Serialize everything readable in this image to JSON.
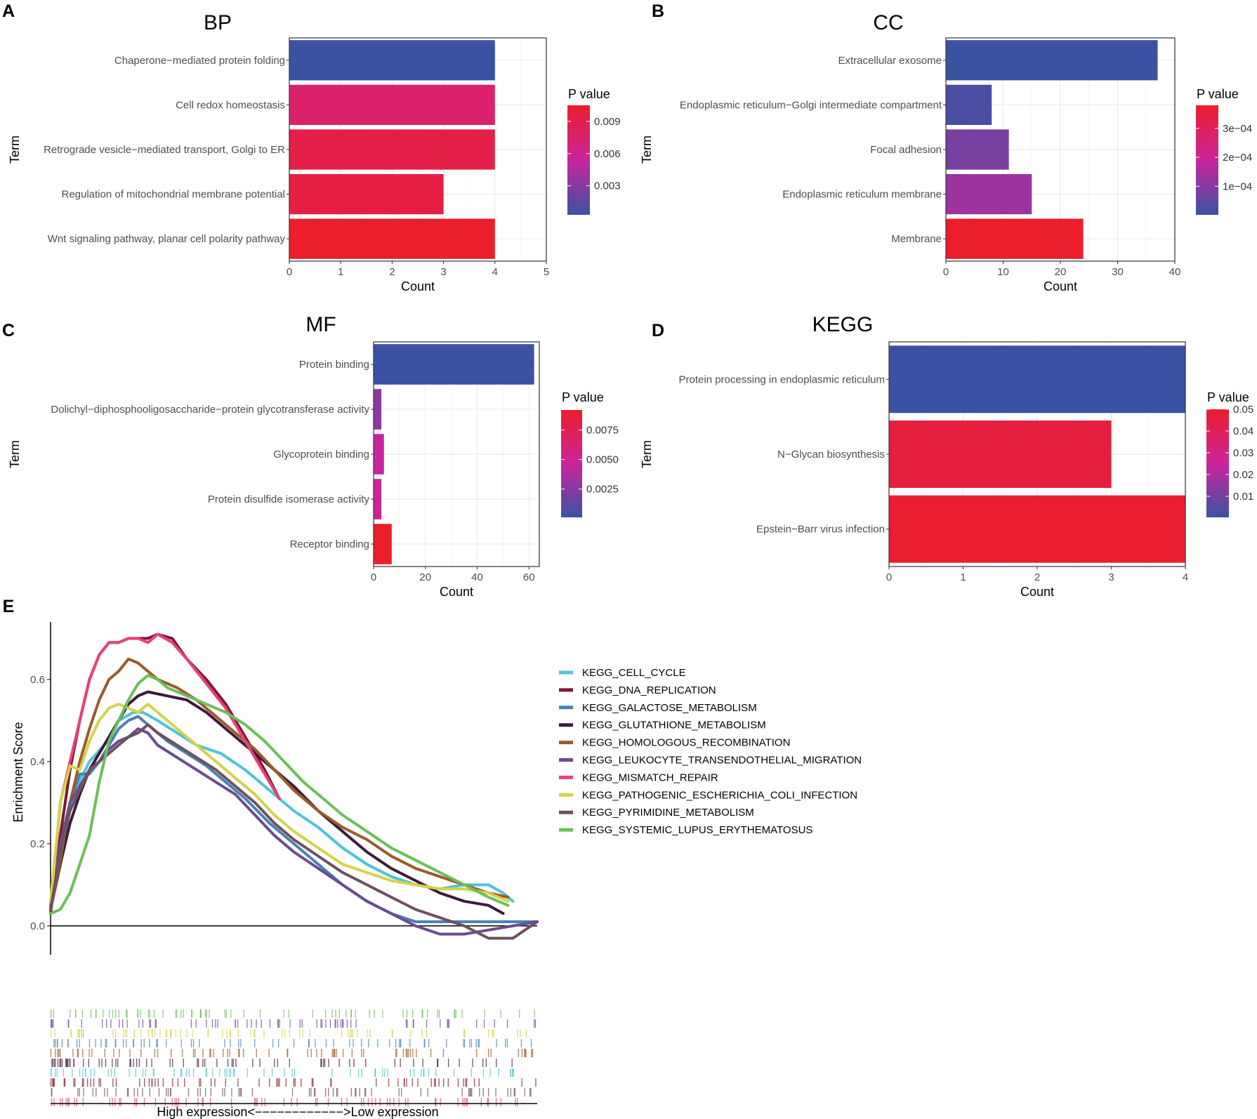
{
  "chart_data": [
    {
      "panel": "A",
      "type": "bar",
      "orientation": "horizontal",
      "title": "BP",
      "xlabel": "Count",
      "ylabel": "Term",
      "xlim": [
        0,
        5
      ],
      "xticks": [
        0,
        1,
        2,
        3,
        4,
        5
      ],
      "grid": true,
      "categories": [
        "Chaperone−mediated protein folding",
        "Cell redox homeostasis",
        "Retrograde vesicle−mediated transport, Golgi to ER",
        "Regulation of mitochondrial membrane potential",
        "Wnt signaling pathway, planar cell polarity pathway"
      ],
      "values": [
        4,
        4,
        4,
        3,
        4
      ],
      "pvalues": [
        0.0003,
        0.0077,
        0.0092,
        0.0094,
        0.0105
      ],
      "legend": {
        "title": "P value",
        "ticks": [
          0.009,
          0.006,
          0.003
        ],
        "tick_labels": [
          "0.009",
          "0.006",
          "0.003"
        ],
        "range": [
          0.0003,
          0.0105
        ]
      }
    },
    {
      "panel": "B",
      "type": "bar",
      "orientation": "horizontal",
      "title": "CC",
      "xlabel": "Count",
      "ylabel": "Term",
      "xlim": [
        0,
        40
      ],
      "xticks": [
        0,
        10,
        20,
        30,
        40
      ],
      "grid": true,
      "categories": [
        "Extracellular exosome",
        "Endoplasmic reticulum−Golgi intermediate compartment",
        "Focal adhesion",
        "Endoplasmic reticulum membrane",
        "Membrane"
      ],
      "values": [
        37,
        8,
        11,
        15,
        24
      ],
      "pvalues": [
        1e-06,
        2e-05,
        8e-05,
        0.00013,
        0.00038
      ],
      "legend": {
        "title": "P value",
        "ticks": [
          0.0003,
          0.0002,
          0.0001
        ],
        "tick_labels": [
          "3e−04",
          "2e−04",
          "1e−04"
        ],
        "range": [
          1e-06,
          0.00038
        ]
      }
    },
    {
      "panel": "C",
      "type": "bar",
      "orientation": "horizontal",
      "title": "MF",
      "xlabel": "Count",
      "ylabel": "Term",
      "xlim": [
        0,
        64
      ],
      "xticks": [
        0,
        20,
        40,
        60
      ],
      "grid": true,
      "categories": [
        "Protein binding",
        "Dolichyl−diphosphooligosaccharide−protein glycotransferase activity",
        "Glycoprotein binding",
        "Protein disulfide isomerase activity",
        "Receptor binding"
      ],
      "values": [
        62,
        3,
        4,
        3,
        7
      ],
      "pvalues": [
        0.0001,
        0.0027,
        0.0046,
        0.0049,
        0.0092
      ],
      "legend": {
        "title": "P value",
        "ticks": [
          0.0075,
          0.005,
          0.0025
        ],
        "tick_labels": [
          "0.0075",
          "0.0050",
          "0.0025"
        ],
        "range": [
          0.0001,
          0.0092
        ]
      }
    },
    {
      "panel": "D",
      "type": "bar",
      "orientation": "horizontal",
      "title": "KEGG",
      "xlabel": "Count",
      "ylabel": "Term",
      "xlim": [
        0,
        4
      ],
      "xticks": [
        0,
        1,
        2,
        3,
        4
      ],
      "grid": true,
      "categories": [
        "Protein processing in endoplasmic reticulum",
        "N−Glycan biosynthesis",
        "Epstein−Barr virus infection"
      ],
      "values": [
        4,
        3,
        4
      ],
      "pvalues": [
        0.0003,
        0.046,
        0.049
      ],
      "legend": {
        "title": "P value",
        "ticks": [
          0.05,
          0.04,
          0.03,
          0.02,
          0.01
        ],
        "tick_labels": [
          "0.05",
          "0.04",
          "0.03",
          "0.02",
          "0.01"
        ],
        "range": [
          0.0003,
          0.05
        ]
      }
    },
    {
      "panel": "E",
      "type": "line",
      "title": "",
      "xlabel": "High expression<−−−−−−−−−−−−>Low expression",
      "ylabel": "Enrichment Score",
      "xlim": [
        0,
        1
      ],
      "ylim": [
        -0.06,
        0.74
      ],
      "yticks": [
        0.0,
        0.2,
        0.4,
        0.6
      ],
      "ytick_labels": [
        "0.0",
        "0.2",
        "0.4",
        "0.6"
      ],
      "series": [
        {
          "name": "KEGG_CELL_CYCLE",
          "color": "#4fc3d9",
          "x": [
            0,
            0.02,
            0.05,
            0.08,
            0.11,
            0.14,
            0.17,
            0.19,
            0.22,
            0.26,
            0.3,
            0.35,
            0.4,
            0.45,
            0.5,
            0.55,
            0.6,
            0.65,
            0.7,
            0.75,
            0.8,
            0.85,
            0.9,
            0.93,
            0.95
          ],
          "y": [
            0.04,
            0.2,
            0.33,
            0.4,
            0.44,
            0.5,
            0.52,
            0.52,
            0.5,
            0.47,
            0.44,
            0.42,
            0.38,
            0.33,
            0.28,
            0.24,
            0.19,
            0.15,
            0.12,
            0.1,
            0.09,
            0.1,
            0.1,
            0.08,
            0.06
          ]
        },
        {
          "name": "KEGG_DNA_REPLICATION",
          "color": "#7b1a2e",
          "x": [
            0,
            0.02,
            0.04,
            0.06,
            0.08,
            0.1,
            0.12,
            0.14,
            0.16,
            0.18,
            0.2,
            0.22,
            0.25,
            0.28,
            0.32,
            0.36,
            0.4,
            0.44,
            0.47
          ],
          "y": [
            0.03,
            0.22,
            0.38,
            0.5,
            0.6,
            0.66,
            0.69,
            0.69,
            0.7,
            0.7,
            0.7,
            0.71,
            0.7,
            0.65,
            0.6,
            0.54,
            0.46,
            0.38,
            0.31
          ]
        },
        {
          "name": "KEGG_GALACTOSE_METABOLISM",
          "color": "#4a82b4",
          "x": [
            0,
            0.02,
            0.04,
            0.06,
            0.08,
            0.1,
            0.12,
            0.14,
            0.16,
            0.18,
            0.2,
            0.24,
            0.28,
            0.32,
            0.36,
            0.4,
            0.45,
            0.5,
            0.55,
            0.6,
            0.65,
            0.7,
            0.75,
            0.8,
            0.85,
            0.9,
            0.95,
            1.0
          ],
          "y": [
            0.05,
            0.18,
            0.3,
            0.37,
            0.37,
            0.4,
            0.44,
            0.48,
            0.5,
            0.51,
            0.49,
            0.45,
            0.42,
            0.39,
            0.35,
            0.31,
            0.25,
            0.2,
            0.15,
            0.1,
            0.06,
            0.03,
            0.01,
            0.01,
            0.01,
            0.01,
            0.01,
            0.01
          ]
        },
        {
          "name": "KEGG_GLUTATHIONE_METABOLISM",
          "color": "#3d1a3a",
          "x": [
            0,
            0.02,
            0.04,
            0.06,
            0.08,
            0.1,
            0.12,
            0.14,
            0.16,
            0.18,
            0.2,
            0.24,
            0.28,
            0.32,
            0.36,
            0.4,
            0.45,
            0.5,
            0.55,
            0.6,
            0.65,
            0.7,
            0.75,
            0.8,
            0.85,
            0.9,
            0.93
          ],
          "y": [
            0.04,
            0.15,
            0.25,
            0.32,
            0.38,
            0.42,
            0.46,
            0.5,
            0.54,
            0.56,
            0.57,
            0.56,
            0.55,
            0.52,
            0.48,
            0.44,
            0.39,
            0.34,
            0.28,
            0.23,
            0.18,
            0.14,
            0.11,
            0.08,
            0.06,
            0.05,
            0.03
          ]
        },
        {
          "name": "KEGG_HOMOLOGOUS_RECOMBINATION",
          "color": "#9a5b2a",
          "x": [
            0,
            0.02,
            0.04,
            0.06,
            0.08,
            0.1,
            0.12,
            0.14,
            0.16,
            0.18,
            0.2,
            0.22,
            0.26,
            0.3,
            0.34,
            0.38,
            0.42,
            0.46,
            0.5,
            0.55,
            0.6,
            0.65,
            0.7,
            0.75,
            0.8,
            0.85,
            0.9,
            0.94
          ],
          "y": [
            0.04,
            0.16,
            0.3,
            0.4,
            0.48,
            0.55,
            0.6,
            0.62,
            0.65,
            0.64,
            0.62,
            0.6,
            0.58,
            0.55,
            0.51,
            0.47,
            0.43,
            0.38,
            0.33,
            0.28,
            0.24,
            0.21,
            0.17,
            0.14,
            0.12,
            0.1,
            0.08,
            0.07
          ]
        },
        {
          "name": "KEGG_LEUKOCYTE_TRANSENDOTHELIAL_MIGRATION",
          "color": "#6a4c93",
          "x": [
            0,
            0.02,
            0.04,
            0.06,
            0.08,
            0.1,
            0.12,
            0.14,
            0.16,
            0.18,
            0.2,
            0.22,
            0.26,
            0.3,
            0.34,
            0.38,
            0.42,
            0.46,
            0.5,
            0.55,
            0.6,
            0.65,
            0.7,
            0.75,
            0.8,
            0.85,
            0.9,
            0.95,
            1.0
          ],
          "y": [
            0.04,
            0.2,
            0.3,
            0.34,
            0.38,
            0.4,
            0.43,
            0.45,
            0.46,
            0.48,
            0.47,
            0.44,
            0.41,
            0.38,
            0.35,
            0.32,
            0.27,
            0.22,
            0.18,
            0.14,
            0.1,
            0.06,
            0.03,
            0.0,
            -0.02,
            -0.02,
            -0.01,
            0.0,
            0.01
          ]
        },
        {
          "name": "KEGG_MISMATCH_REPAIR",
          "color": "#e8417a",
          "x": [
            0,
            0.02,
            0.04,
            0.06,
            0.08,
            0.1,
            0.12,
            0.14,
            0.16,
            0.18,
            0.2,
            0.22,
            0.25,
            0.28,
            0.32,
            0.36,
            0.4,
            0.44,
            0.47
          ],
          "y": [
            0.04,
            0.3,
            0.4,
            0.5,
            0.6,
            0.66,
            0.69,
            0.69,
            0.7,
            0.7,
            0.69,
            0.71,
            0.69,
            0.65,
            0.59,
            0.53,
            0.45,
            0.37,
            0.31
          ]
        },
        {
          "name": "KEGG_PATHOGENIC_ESCHERICHIA_COLI_INFECTION",
          "color": "#d4d34a",
          "x": [
            0,
            0.02,
            0.04,
            0.06,
            0.08,
            0.1,
            0.12,
            0.14,
            0.16,
            0.18,
            0.2,
            0.22,
            0.26,
            0.3,
            0.34,
            0.38,
            0.42,
            0.46,
            0.5,
            0.55,
            0.6,
            0.65,
            0.7,
            0.75,
            0.8,
            0.85,
            0.9,
            0.94
          ],
          "y": [
            0.06,
            0.3,
            0.39,
            0.38,
            0.45,
            0.5,
            0.53,
            0.54,
            0.53,
            0.52,
            0.54,
            0.52,
            0.48,
            0.44,
            0.4,
            0.36,
            0.32,
            0.27,
            0.23,
            0.19,
            0.15,
            0.13,
            0.11,
            0.1,
            0.09,
            0.09,
            0.08,
            0.06
          ]
        },
        {
          "name": "KEGG_PYRIMIDINE_METABOLISM",
          "color": "#6e5060",
          "x": [
            0,
            0.02,
            0.04,
            0.06,
            0.08,
            0.1,
            0.12,
            0.14,
            0.16,
            0.18,
            0.2,
            0.22,
            0.26,
            0.3,
            0.34,
            0.38,
            0.42,
            0.46,
            0.5,
            0.55,
            0.6,
            0.65,
            0.7,
            0.75,
            0.8,
            0.85,
            0.9,
            0.95,
            1.0
          ],
          "y": [
            0.04,
            0.18,
            0.28,
            0.33,
            0.38,
            0.4,
            0.42,
            0.44,
            0.46,
            0.47,
            0.49,
            0.47,
            0.44,
            0.41,
            0.38,
            0.34,
            0.3,
            0.25,
            0.21,
            0.17,
            0.13,
            0.1,
            0.07,
            0.04,
            0.02,
            0.0,
            -0.03,
            -0.03,
            0.01
          ]
        },
        {
          "name": "KEGG_SYSTEMIC_LUPUS_ERYTHEMATOSUS",
          "color": "#6cbf5a",
          "x": [
            0,
            0.02,
            0.04,
            0.06,
            0.08,
            0.1,
            0.12,
            0.14,
            0.16,
            0.18,
            0.2,
            0.22,
            0.24,
            0.28,
            0.32,
            0.36,
            0.4,
            0.44,
            0.48,
            0.52,
            0.56,
            0.6,
            0.65,
            0.7,
            0.75,
            0.8,
            0.85,
            0.9,
            0.94
          ],
          "y": [
            0.03,
            0.04,
            0.08,
            0.15,
            0.22,
            0.35,
            0.45,
            0.5,
            0.55,
            0.59,
            0.61,
            0.6,
            0.58,
            0.56,
            0.54,
            0.52,
            0.49,
            0.45,
            0.4,
            0.35,
            0.31,
            0.27,
            0.23,
            0.19,
            0.16,
            0.13,
            0.1,
            0.07,
            0.05
          ]
        }
      ]
    }
  ]
}
